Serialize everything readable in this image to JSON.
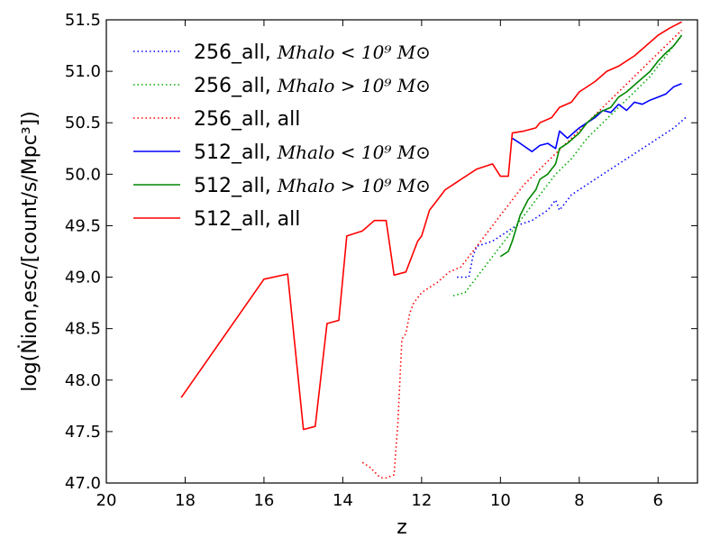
{
  "chart_data": {
    "type": "line",
    "title": "",
    "xlabel": "z",
    "ylabel": "log(Ṅion,esc/[count/s/Mpc³])",
    "xlim": [
      20,
      5
    ],
    "ylim": [
      47.0,
      51.5
    ],
    "x_ticks": [
      20,
      18,
      16,
      14,
      12,
      10,
      8,
      6
    ],
    "y_ticks": [
      47.0,
      47.5,
      48.0,
      48.5,
      49.0,
      49.5,
      50.0,
      50.5,
      51.0,
      51.5
    ],
    "x_tick_labels": [
      "20",
      "18",
      "16",
      "14",
      "12",
      "10",
      "8",
      "6"
    ],
    "y_tick_labels": [
      "47.0",
      "47.5",
      "48.0",
      "48.5",
      "49.0",
      "49.5",
      "50.0",
      "50.5",
      "51.0",
      "51.5"
    ],
    "grid": false,
    "legend_position": "top-left",
    "series": [
      {
        "name": "256_all, Mhalo < 10^9 M⊙",
        "color": "#0000ff",
        "dash": "dotted",
        "x": [
          11.1,
          10.8,
          10.7,
          10.6,
          10.2,
          10.0,
          9.8,
          9.6,
          9.2,
          8.8,
          8.6,
          8.5,
          8.2,
          8.0,
          7.8,
          7.6,
          7.2,
          7.0,
          6.8,
          6.4,
          6.0,
          5.6,
          5.3
        ],
        "values": [
          49.0,
          49.0,
          49.2,
          49.3,
          49.35,
          49.4,
          49.45,
          49.5,
          49.55,
          49.65,
          49.75,
          49.65,
          49.8,
          49.85,
          49.9,
          49.95,
          50.05,
          50.1,
          50.15,
          50.25,
          50.35,
          50.45,
          50.55
        ]
      },
      {
        "name": "256_all, Mhalo > 10^9 M⊙",
        "color": "#00aa00",
        "dash": "dotted",
        "x": [
          11.2,
          10.9,
          10.6,
          10.3,
          10.0,
          9.7,
          9.4,
          9.0,
          8.6,
          8.2,
          7.8,
          7.4,
          7.0,
          6.6,
          6.2,
          5.8,
          5.4
        ],
        "values": [
          48.82,
          48.85,
          49.0,
          49.15,
          49.3,
          49.45,
          49.6,
          49.8,
          50.0,
          50.15,
          50.35,
          50.5,
          50.65,
          50.8,
          50.95,
          51.15,
          51.35
        ]
      },
      {
        "name": "256_all, all",
        "color": "#ff0000",
        "dash": "dotted",
        "x": [
          13.5,
          13.3,
          13.1,
          13.0,
          12.9,
          12.7,
          12.6,
          12.5,
          12.4,
          12.3,
          12.2,
          12.1,
          12.0,
          11.8,
          11.6,
          11.3,
          11.0,
          10.8,
          10.6,
          10.3,
          10.0,
          9.7,
          9.4,
          9.0,
          8.6,
          8.2,
          7.8,
          7.4,
          7.0,
          6.6,
          6.2,
          5.8,
          5.4
        ],
        "values": [
          47.2,
          47.15,
          47.07,
          47.05,
          47.05,
          47.08,
          47.6,
          48.4,
          48.45,
          48.65,
          48.75,
          48.8,
          48.85,
          48.9,
          48.95,
          49.05,
          49.1,
          49.2,
          49.3,
          49.45,
          49.6,
          49.75,
          49.9,
          50.05,
          50.2,
          50.35,
          50.5,
          50.65,
          50.8,
          50.95,
          51.1,
          51.25,
          51.4
        ]
      },
      {
        "name": "512_all, Mhalo < 10^9 M⊙",
        "color": "#0000ff",
        "dash": "solid",
        "x": [
          9.7,
          9.5,
          9.2,
          9.0,
          8.8,
          8.6,
          8.5,
          8.3,
          8.0,
          7.8,
          7.6,
          7.4,
          7.2,
          7.0,
          6.8,
          6.6,
          6.4,
          6.2,
          6.0,
          5.8,
          5.6,
          5.4
        ],
        "values": [
          50.35,
          50.3,
          50.22,
          50.28,
          50.3,
          50.25,
          50.42,
          50.35,
          50.45,
          50.5,
          50.55,
          50.62,
          50.6,
          50.68,
          50.62,
          50.7,
          50.68,
          50.72,
          50.75,
          50.78,
          50.85,
          50.88
        ]
      },
      {
        "name": "512_all, Mhalo > 10^9 M⊙",
        "color": "#008800",
        "dash": "solid",
        "x": [
          10.0,
          9.8,
          9.7,
          9.5,
          9.3,
          9.1,
          9.0,
          8.8,
          8.6,
          8.5,
          8.3,
          8.0,
          7.8,
          7.5,
          7.2,
          7.0,
          6.8,
          6.5,
          6.2,
          6.0,
          5.8,
          5.6,
          5.4
        ],
        "values": [
          49.2,
          49.25,
          49.35,
          49.6,
          49.75,
          49.85,
          49.95,
          50.0,
          50.1,
          50.25,
          50.3,
          50.4,
          50.5,
          50.6,
          50.65,
          50.75,
          50.8,
          50.9,
          51.0,
          51.1,
          51.18,
          51.25,
          51.35
        ]
      },
      {
        "name": "512_all, all",
        "color": "#ff0000",
        "dash": "solid",
        "x": [
          18.1,
          16.0,
          15.4,
          15.0,
          14.7,
          14.4,
          14.1,
          13.9,
          13.5,
          13.2,
          12.9,
          12.7,
          12.4,
          12.1,
          12.0,
          11.8,
          11.7,
          11.4,
          11.2,
          11.0,
          10.6,
          10.2,
          10.0,
          9.8,
          9.7,
          9.4,
          9.1,
          9.0,
          8.7,
          8.5,
          8.2,
          8.0,
          7.6,
          7.3,
          7.0,
          6.6,
          6.3,
          6.0,
          5.7,
          5.4
        ],
        "values": [
          47.83,
          48.98,
          49.03,
          47.52,
          47.55,
          48.55,
          48.58,
          49.4,
          49.45,
          49.55,
          49.55,
          49.02,
          49.05,
          49.35,
          49.4,
          49.65,
          49.7,
          49.85,
          49.9,
          49.95,
          50.05,
          50.1,
          49.98,
          49.98,
          50.4,
          50.42,
          50.45,
          50.5,
          50.55,
          50.65,
          50.7,
          50.8,
          50.9,
          51.0,
          51.05,
          51.15,
          51.25,
          51.35,
          51.42,
          51.48
        ]
      }
    ],
    "legend": [
      {
        "prefix": "256_all, ",
        "math": "Mhalo < 10⁹ M⊙",
        "color": "#0000ff",
        "dash": "dotted"
      },
      {
        "prefix": "256_all, ",
        "math": "Mhalo > 10⁹ M⊙",
        "color": "#00aa00",
        "dash": "dotted"
      },
      {
        "prefix": "256_all, all",
        "math": "",
        "color": "#ff0000",
        "dash": "dotted"
      },
      {
        "prefix": "512_all, ",
        "math": "Mhalo < 10⁹ M⊙",
        "color": "#0000ff",
        "dash": "solid"
      },
      {
        "prefix": "512_all, ",
        "math": "Mhalo > 10⁹ M⊙",
        "color": "#008800",
        "dash": "solid"
      },
      {
        "prefix": "512_all, all",
        "math": "",
        "color": "#ff0000",
        "dash": "solid"
      }
    ]
  }
}
